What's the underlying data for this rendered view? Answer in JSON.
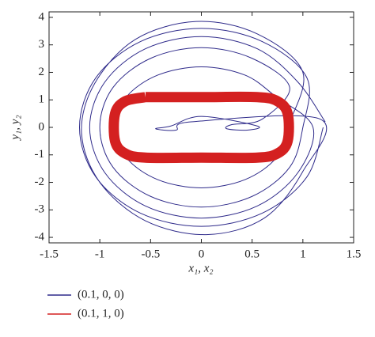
{
  "chart_data": {
    "type": "line",
    "x_label": "x₁, x₂",
    "y_label": "y₁, y₂",
    "xlim": [
      -1.5,
      1.5
    ],
    "ylim": [
      -4.2,
      4.2
    ],
    "xticks": [
      -1.5,
      -1,
      -0.5,
      0,
      0.5,
      1,
      1.5
    ],
    "yticks": [
      -4,
      -3,
      -2,
      -1,
      0,
      1,
      2,
      3,
      4
    ],
    "legend": "bottom-left",
    "series": [
      {
        "name": "(0.1, 0, 0)",
        "color": "#2e2a8a",
        "x": [
          1.2,
          1.04,
          0.6,
          0,
          -0.6,
          -1.04,
          -1.2,
          -1.04,
          -0.6,
          0,
          0.6,
          1.04,
          1.0,
          0.87,
          0.5,
          0,
          -0.5,
          -0.87,
          -1.0,
          -0.87,
          -0.5,
          0,
          0.5,
          0.87,
          0.6,
          0.3,
          0.25,
          0.45,
          0.55,
          0,
          -0.3,
          -0.45,
          -0.25,
          -0.1,
          1.17,
          1.0,
          0.62,
          0.05,
          -0.55,
          -1.0,
          -1.18,
          -1.05,
          -0.65,
          -0.05,
          0.55,
          1.0,
          0.85,
          0.74,
          0.43,
          0,
          -0.43,
          -0.74,
          -0.85,
          -0.74,
          -0.43,
          0,
          0.43,
          0.74,
          1.1,
          0.95,
          0.55,
          0,
          -0.55,
          -0.95,
          -1.1,
          -0.95,
          -0.55,
          0,
          0.55,
          0.95,
          1.22
        ],
        "values": [
          0,
          -1.8,
          -3.12,
          -3.6,
          -3.12,
          -1.8,
          0,
          1.8,
          3.12,
          3.6,
          3.12,
          1.8,
          0,
          -1.45,
          -2.51,
          -2.9,
          -2.51,
          -1.45,
          0,
          1.45,
          2.51,
          2.9,
          2.51,
          1.45,
          0.3,
          0.1,
          -0.05,
          -0.1,
          0.05,
          0.4,
          0.05,
          -0.05,
          -0.1,
          0.2,
          0.3,
          -1.6,
          -3.3,
          -3.9,
          -3.4,
          -2.0,
          -0.2,
          1.6,
          3.2,
          3.85,
          3.4,
          2.0,
          0,
          -1.1,
          -1.9,
          -2.2,
          -1.9,
          -1.1,
          0,
          1.1,
          1.9,
          2.2,
          1.9,
          1.1,
          0,
          -1.65,
          -2.86,
          -3.3,
          -2.86,
          -1.65,
          0,
          1.65,
          2.86,
          3.3,
          2.86,
          1.65,
          0.2
        ]
      },
      {
        "name": "(0.1, 1, 0)",
        "color": "#d42020",
        "x": [
          -0.55,
          0,
          0.55,
          0.75,
          0.85,
          0.85,
          0.75,
          0.55,
          0,
          -0.55,
          -0.75,
          -0.85,
          -0.85,
          -0.75,
          -0.55
        ],
        "values": [
          1.1,
          1.1,
          1.1,
          0.95,
          0.5,
          -0.5,
          -0.95,
          -1.1,
          -1.1,
          -1.1,
          -0.95,
          -0.5,
          0.5,
          0.95,
          1.1
        ]
      }
    ]
  }
}
